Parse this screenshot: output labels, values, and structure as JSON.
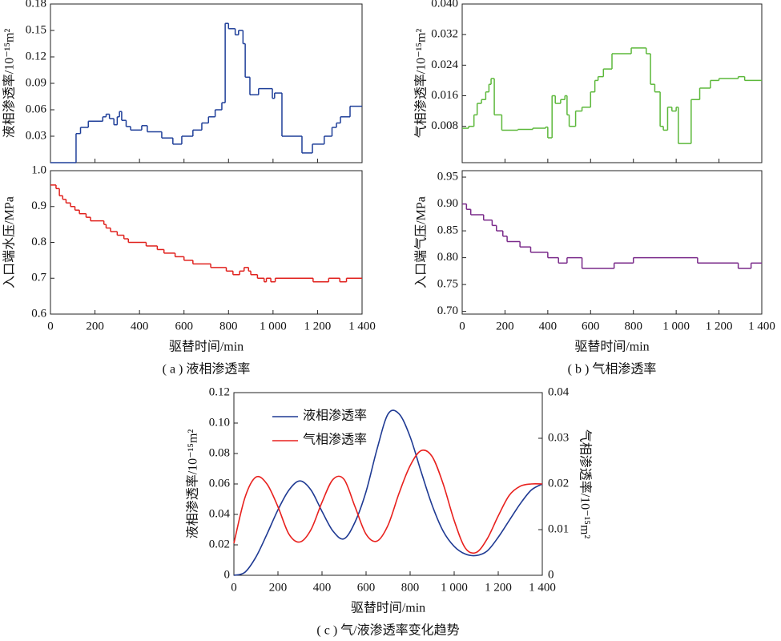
{
  "chart_data": [
    {
      "type": "line",
      "step": true,
      "ylabel": "液相渗透率/10⁻¹⁵m²",
      "color": "#1f3f99",
      "x": [
        0,
        115,
        135,
        170,
        235,
        250,
        265,
        285,
        300,
        310,
        320,
        340,
        360,
        410,
        435,
        500,
        550,
        590,
        640,
        680,
        710,
        740,
        770,
        785,
        800,
        830,
        845,
        865,
        875,
        896,
        935,
        997,
        1007,
        1040,
        1130,
        1177,
        1230,
        1265,
        1285,
        1303,
        1346
      ],
      "values": [
        0,
        0.033,
        0.04,
        0.047,
        0.052,
        0.055,
        0.05,
        0.043,
        0.052,
        0.058,
        0.048,
        0.041,
        0.037,
        0.042,
        0.035,
        0.028,
        0.021,
        0.03,
        0.037,
        0.045,
        0.052,
        0.06,
        0.068,
        0.158,
        0.152,
        0.145,
        0.15,
        0.135,
        0.097,
        0.077,
        0.084,
        0.073,
        0.079,
        0.03,
        0.011,
        0.021,
        0.03,
        0.04,
        0.045,
        0.052,
        0.064
      ],
      "xlim": [
        0,
        1400
      ],
      "ylim": [
        0,
        0.18
      ],
      "yticks": [
        0.03,
        0.06,
        0.09,
        0.12,
        0.15,
        0.18
      ]
    },
    {
      "type": "line",
      "step": true,
      "ylabel": "入口端水压/MPa",
      "xlabel": "驱替时间/min",
      "caption": "( a ) 液相渗透率",
      "color": "#e0201c",
      "x": [
        0,
        25,
        40,
        55,
        70,
        90,
        110,
        130,
        160,
        180,
        240,
        250,
        270,
        300,
        330,
        350,
        430,
        480,
        510,
        560,
        600,
        640,
        720,
        790,
        820,
        850,
        870,
        890,
        900,
        930,
        960,
        970,
        990,
        1010,
        1180,
        1250,
        1300,
        1330
      ],
      "values": [
        0.96,
        0.95,
        0.93,
        0.92,
        0.91,
        0.9,
        0.89,
        0.88,
        0.87,
        0.86,
        0.85,
        0.84,
        0.83,
        0.82,
        0.81,
        0.8,
        0.79,
        0.78,
        0.77,
        0.76,
        0.75,
        0.74,
        0.73,
        0.72,
        0.71,
        0.72,
        0.73,
        0.72,
        0.71,
        0.7,
        0.69,
        0.7,
        0.69,
        0.7,
        0.69,
        0.7,
        0.69,
        0.7
      ],
      "xlim": [
        0,
        1400
      ],
      "xticks": [
        0,
        200,
        400,
        600,
        800,
        {
          "value": 1000,
          "label": "1 000"
        },
        {
          "value": 1200,
          "label": "1 200"
        },
        {
          "value": 1400,
          "label": "1 400"
        }
      ],
      "ylim": [
        0.6,
        1.0
      ],
      "yticks": [
        0.6,
        0.7,
        0.8,
        0.9,
        {
          "value": 1,
          "label": "1.0"
        }
      ]
    },
    {
      "type": "line",
      "step": true,
      "ylabel": "气相渗透率/10⁻¹⁵m²",
      "color": "#5cb83a",
      "x": [
        0,
        30,
        55,
        70,
        90,
        110,
        125,
        135,
        150,
        185,
        260,
        330,
        390,
        400,
        420,
        435,
        460,
        480,
        490,
        500,
        530,
        560,
        600,
        620,
        635,
        660,
        700,
        790,
        860,
        880,
        900,
        925,
        940,
        960,
        980,
        1000,
        1010,
        1070,
        1110,
        1160,
        1200,
        1290,
        1320
      ],
      "values": [
        0.0075,
        0.008,
        0.011,
        0.014,
        0.015,
        0.017,
        0.019,
        0.0205,
        0.011,
        0.007,
        0.0072,
        0.0075,
        0.0078,
        0.005,
        0.016,
        0.014,
        0.015,
        0.016,
        0.011,
        0.008,
        0.012,
        0.013,
        0.017,
        0.02,
        0.021,
        0.023,
        0.027,
        0.0285,
        0.027,
        0.019,
        0.017,
        0.008,
        0.007,
        0.013,
        0.012,
        0.013,
        0.0035,
        0.015,
        0.018,
        0.02,
        0.0205,
        0.021,
        0.02
      ],
      "xlim": [
        0,
        1400
      ],
      "ylim": [
        -0.0015,
        0.04
      ],
      "yticks": [
        0.008,
        0.016,
        0.024,
        0.032,
        {
          "value": 0.04,
          "label": "0.040"
        }
      ]
    },
    {
      "type": "line",
      "step": true,
      "ylabel": "入口端气压/MPa",
      "xlabel": "驱替时间/min",
      "caption": "( b ) 气相渗透率",
      "color": "#7a2a8a",
      "x": [
        0,
        20,
        40,
        100,
        140,
        160,
        190,
        210,
        270,
        320,
        400,
        450,
        490,
        560,
        710,
        800,
        1100,
        1290,
        1350
      ],
      "values": [
        0.9,
        0.89,
        0.88,
        0.87,
        0.86,
        0.85,
        0.84,
        0.83,
        0.82,
        0.81,
        0.8,
        0.79,
        0.8,
        0.78,
        0.79,
        0.8,
        0.79,
        0.78,
        0.79
      ],
      "xlim": [
        0,
        1400
      ],
      "xticks": [
        0,
        200,
        400,
        600,
        800,
        {
          "value": 1000,
          "label": "1 000"
        },
        {
          "value": 1200,
          "label": "1 200"
        },
        {
          "value": 1400,
          "label": "1 400"
        }
      ],
      "ylim": [
        0.695,
        0.962
      ],
      "yticks": [
        {
          "value": 0.7,
          "label": "0.70"
        },
        0.75,
        {
          "value": 0.8,
          "label": "0.80"
        },
        0.85,
        {
          "value": 0.9,
          "label": "0.90"
        },
        0.95
      ]
    },
    {
      "type": "line",
      "smooth": true,
      "ylabel": "液相渗透率/10⁻¹⁵m²",
      "y2label": "气相渗透率/10⁻¹⁵m²",
      "xlabel": "驱替时间/min",
      "caption": "( c ) 气/液渗透率变化趋势",
      "legend": "upper left",
      "x": [
        0,
        50,
        100,
        150,
        200,
        250,
        300,
        350,
        400,
        450,
        500,
        550,
        600,
        650,
        700,
        750,
        800,
        850,
        900,
        950,
        1000,
        1050,
        1100,
        1150,
        1200,
        1250,
        1300,
        1350,
        1400
      ],
      "series": [
        {
          "name": "液相渗透率",
          "color": "#1f3a93",
          "values": [
            0,
            0.002,
            0.012,
            0.027,
            0.043,
            0.056,
            0.062,
            0.056,
            0.042,
            0.029,
            0.024,
            0.035,
            0.055,
            0.083,
            0.106,
            0.106,
            0.091,
            0.068,
            0.046,
            0.029,
            0.019,
            0.014,
            0.013,
            0.016,
            0.025,
            0.036,
            0.047,
            0.056,
            0.06
          ]
        },
        {
          "name": "气相渗透率",
          "color": "#e8211e",
          "axis": "y2",
          "values": [
            0.007,
            0.017,
            0.0215,
            0.02,
            0.015,
            0.009,
            0.0073,
            0.01,
            0.016,
            0.021,
            0.021,
            0.015,
            0.009,
            0.0075,
            0.011,
            0.018,
            0.024,
            0.0273,
            0.026,
            0.02,
            0.012,
            0.006,
            0.005,
            0.008,
            0.013,
            0.0175,
            0.0195,
            0.02,
            0.02
          ]
        }
      ],
      "xlim": [
        0,
        1400
      ],
      "xticks": [
        0,
        200,
        400,
        600,
        800,
        {
          "value": 1000,
          "label": "1 000"
        },
        {
          "value": 1200,
          "label": "1 200"
        },
        {
          "value": 1400,
          "label": "1 400"
        }
      ],
      "ylim": [
        0,
        0.12
      ],
      "yticks": [
        0,
        0.02,
        0.04,
        0.06,
        0.08,
        {
          "value": 0.1,
          "label": "0.10"
        },
        0.12
      ],
      "y2lim": [
        0,
        0.04
      ],
      "y2ticks": [
        0,
        0.01,
        0.02,
        0.03,
        0.04
      ]
    }
  ]
}
